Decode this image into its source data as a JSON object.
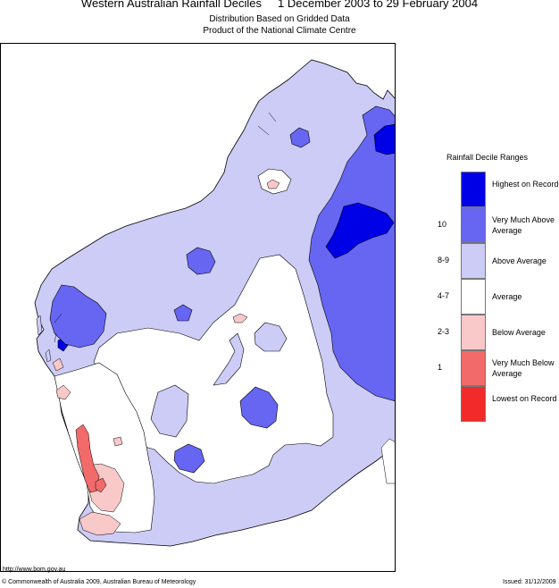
{
  "header": {
    "title": "Western Australian Rainfall Deciles     1 December 2003 to 29 February 2004",
    "subtitle1": "Distribution Based on Gridded Data",
    "subtitle2": "Product of the National Climate Centre"
  },
  "legend": {
    "title": "Rainfall Decile Ranges",
    "items": [
      {
        "label": "Highest on Record",
        "color": "#0000e6",
        "code": ""
      },
      {
        "label": "Very Much Above Average",
        "color": "#6666f2",
        "code": "10"
      },
      {
        "label": "Above Average",
        "color": "#ccccf7",
        "code": "8-9"
      },
      {
        "label": "Average",
        "color": "#ffffff",
        "code": "4-7"
      },
      {
        "label": "Below Average",
        "color": "#f9c8c8",
        "code": "2-3"
      },
      {
        "label": "Very Much Below Average",
        "color": "#f26a6a",
        "code": "1"
      },
      {
        "label": "Lowest on Record",
        "color": "#f22a2a",
        "code": ""
      }
    ]
  },
  "footer": {
    "url": "http://www.bom.gov.au",
    "copyright": "© Commonwealth of Australia 2009, Australian Bureau of Meteorology",
    "issued": "Issued: 31/12/2009"
  }
}
